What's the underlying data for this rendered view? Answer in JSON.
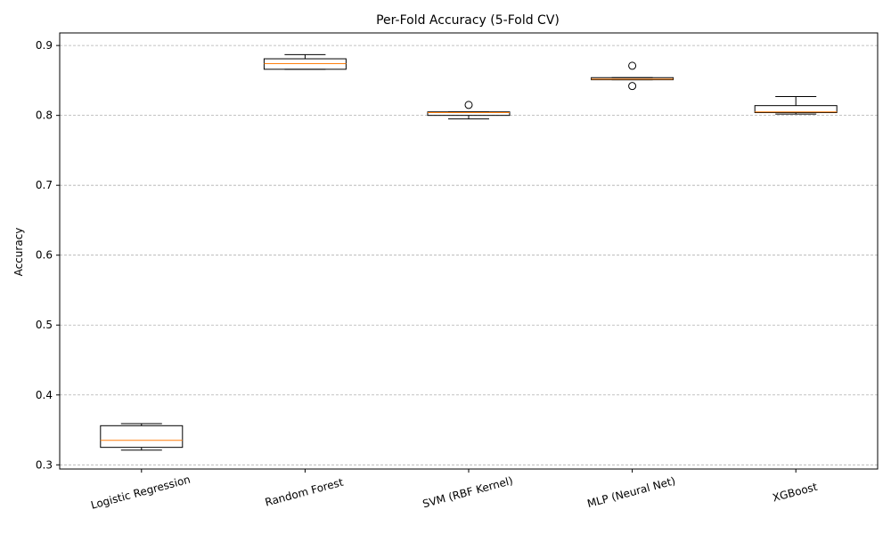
{
  "chart_data": {
    "type": "box",
    "title": "Per-Fold Accuracy (5-Fold CV)",
    "xlabel": "",
    "ylabel": "Accuracy",
    "ylim": [
      0.294,
      0.918
    ],
    "yticks": [
      0.3,
      0.4,
      0.5,
      0.6,
      0.7,
      0.8,
      0.9
    ],
    "ytick_labels": [
      "0.3",
      "0.4",
      "0.5",
      "0.6",
      "0.7",
      "0.8",
      "0.9"
    ],
    "grid": "y",
    "grid_style": "dashed",
    "categories": [
      "Logistic Regression",
      "Random Forest",
      "SVM (RBF Kernel)",
      "MLP (Neural Net)",
      "XGBoost"
    ],
    "boxes": [
      {
        "whisker_low": 0.321,
        "q1": 0.325,
        "median": 0.335,
        "q3": 0.356,
        "whisker_high": 0.359,
        "outliers": []
      },
      {
        "whisker_low": 0.866,
        "q1": 0.866,
        "median": 0.874,
        "q3": 0.881,
        "whisker_high": 0.887,
        "outliers": []
      },
      {
        "whisker_low": 0.795,
        "q1": 0.8,
        "median": 0.804,
        "q3": 0.805,
        "whisker_high": 0.805,
        "outliers": [
          0.815
        ]
      },
      {
        "whisker_low": 0.851,
        "q1": 0.851,
        "median": 0.852,
        "q3": 0.854,
        "whisker_high": 0.854,
        "outliers": [
          0.871,
          0.842
        ]
      },
      {
        "whisker_low": 0.802,
        "q1": 0.804,
        "median": 0.805,
        "q3": 0.814,
        "whisker_high": 0.827,
        "outliers": []
      }
    ],
    "colors": {
      "box": "#000000",
      "median": "#ff7f0e",
      "grid": "#b0b0b0",
      "frame": "#000000"
    }
  }
}
